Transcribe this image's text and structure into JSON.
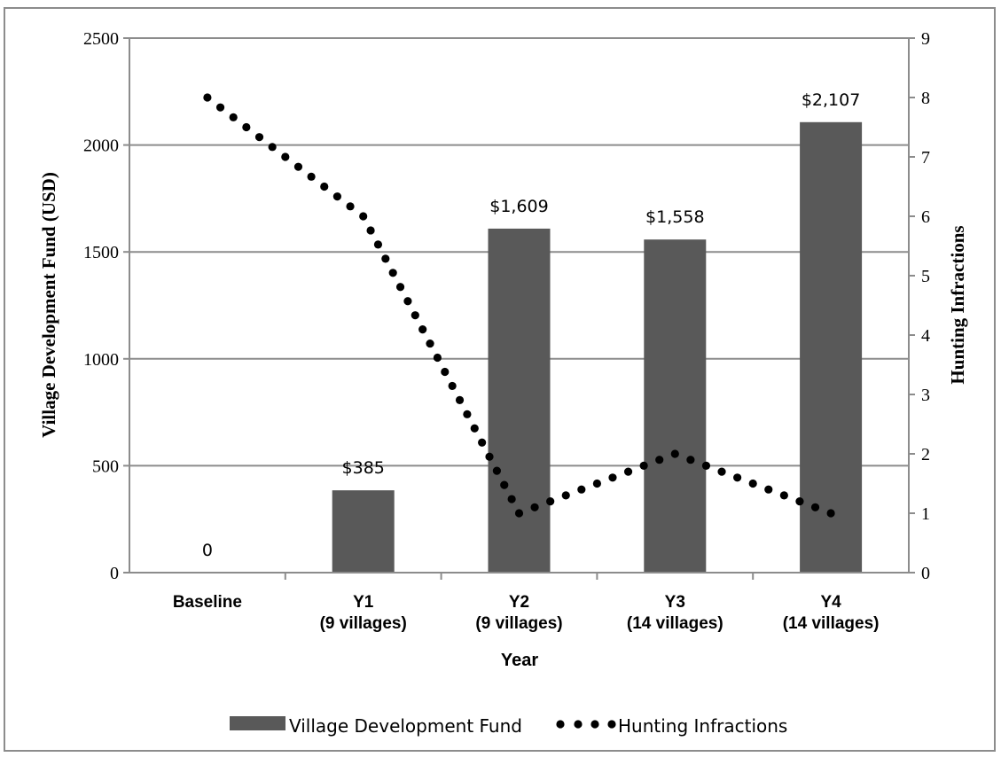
{
  "chart_data": {
    "type": "bar",
    "title": "",
    "categories": [
      [
        "Baseline"
      ],
      [
        "Y1",
        "(9 villages)"
      ],
      [
        "Y2",
        "(9 villages)"
      ],
      [
        "Y3",
        "(14 villages)"
      ],
      [
        "Y4",
        "(14 villages)"
      ]
    ],
    "xlabel": "Year",
    "ylabel": "Village Development Fund (USD)",
    "y2label": "Hunting Infractions",
    "ylim": [
      0,
      2500
    ],
    "yticks": [
      0,
      500,
      1000,
      1500,
      2000,
      2500
    ],
    "y2lim": [
      0,
      9
    ],
    "y2ticks": [
      0,
      1,
      2,
      3,
      4,
      5,
      6,
      7,
      8,
      9
    ],
    "grid": true,
    "legend_position": "bottom",
    "series": [
      {
        "name": "Village Development Fund",
        "type": "bar",
        "axis": "left",
        "color": "#595959",
        "values": [
          0,
          385,
          1609,
          1558,
          2107
        ],
        "labels": [
          "0",
          "$385",
          "$1,609",
          "$1,558",
          "$2,107"
        ]
      },
      {
        "name": "Hunting Infractions",
        "type": "line",
        "style": "round-dot",
        "axis": "right",
        "color": "#000000",
        "values": [
          8,
          6,
          1,
          2,
          1
        ]
      }
    ]
  }
}
